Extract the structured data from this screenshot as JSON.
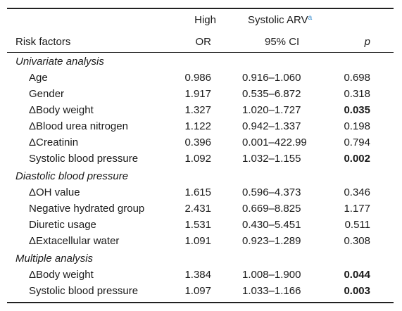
{
  "header": {
    "high": "High",
    "systolic_arv": "Systolic ARV",
    "footnote_mark": "a",
    "risk_factors": "Risk factors",
    "or": "OR",
    "ci": "95% CI",
    "p": "p"
  },
  "sections": [
    {
      "title": "Univariate analysis",
      "rows": [
        {
          "factor": "Age",
          "or": "0.986",
          "ci": "0.916–1.060",
          "p": "0.698",
          "significant": false
        },
        {
          "factor": "Gender",
          "or": "1.917",
          "ci": "0.535–6.872",
          "p": "0.318",
          "significant": false
        },
        {
          "factor": "ΔBody weight",
          "or": "1.327",
          "ci": "1.020–1.727",
          "p": "0.035",
          "significant": true
        },
        {
          "factor": "ΔBlood urea nitrogen",
          "or": "1.122",
          "ci": "0.942–1.337",
          "p": "0.198",
          "significant": false
        },
        {
          "factor": "ΔCreatinin",
          "or": "0.396",
          "ci": "0.001–422.99",
          "p": "0.794",
          "significant": false
        },
        {
          "factor": "Systolic blood pressure",
          "or": "1.092",
          "ci": "1.032–1.155",
          "p": "0.002",
          "significant": true
        }
      ]
    },
    {
      "title": "Diastolic blood pressure",
      "rows": [
        {
          "factor": "ΔOH value",
          "or": "1.615",
          "ci": "0.596–4.373",
          "p": "0.346",
          "significant": false
        },
        {
          "factor": "Negative hydrated group",
          "or": "2.431",
          "ci": "0.669–8.825",
          "p": "1.177",
          "significant": false
        },
        {
          "factor": "Diuretic usage",
          "or": "1.531",
          "ci": "0.430–5.451",
          "p": "0.511",
          "significant": false
        },
        {
          "factor": "ΔExtacellular water",
          "or": "1.091",
          "ci": "0.923–1.289",
          "p": "0.308",
          "significant": false
        }
      ]
    },
    {
      "title": "Multiple analysis",
      "rows": [
        {
          "factor": "ΔBody weight",
          "or": "1.384",
          "ci": "1.008–1.900",
          "p": "0.044",
          "significant": true
        },
        {
          "factor": "Systolic blood pressure",
          "or": "1.097",
          "ci": "1.033–1.166",
          "p": "0.003",
          "significant": true
        }
      ]
    }
  ]
}
